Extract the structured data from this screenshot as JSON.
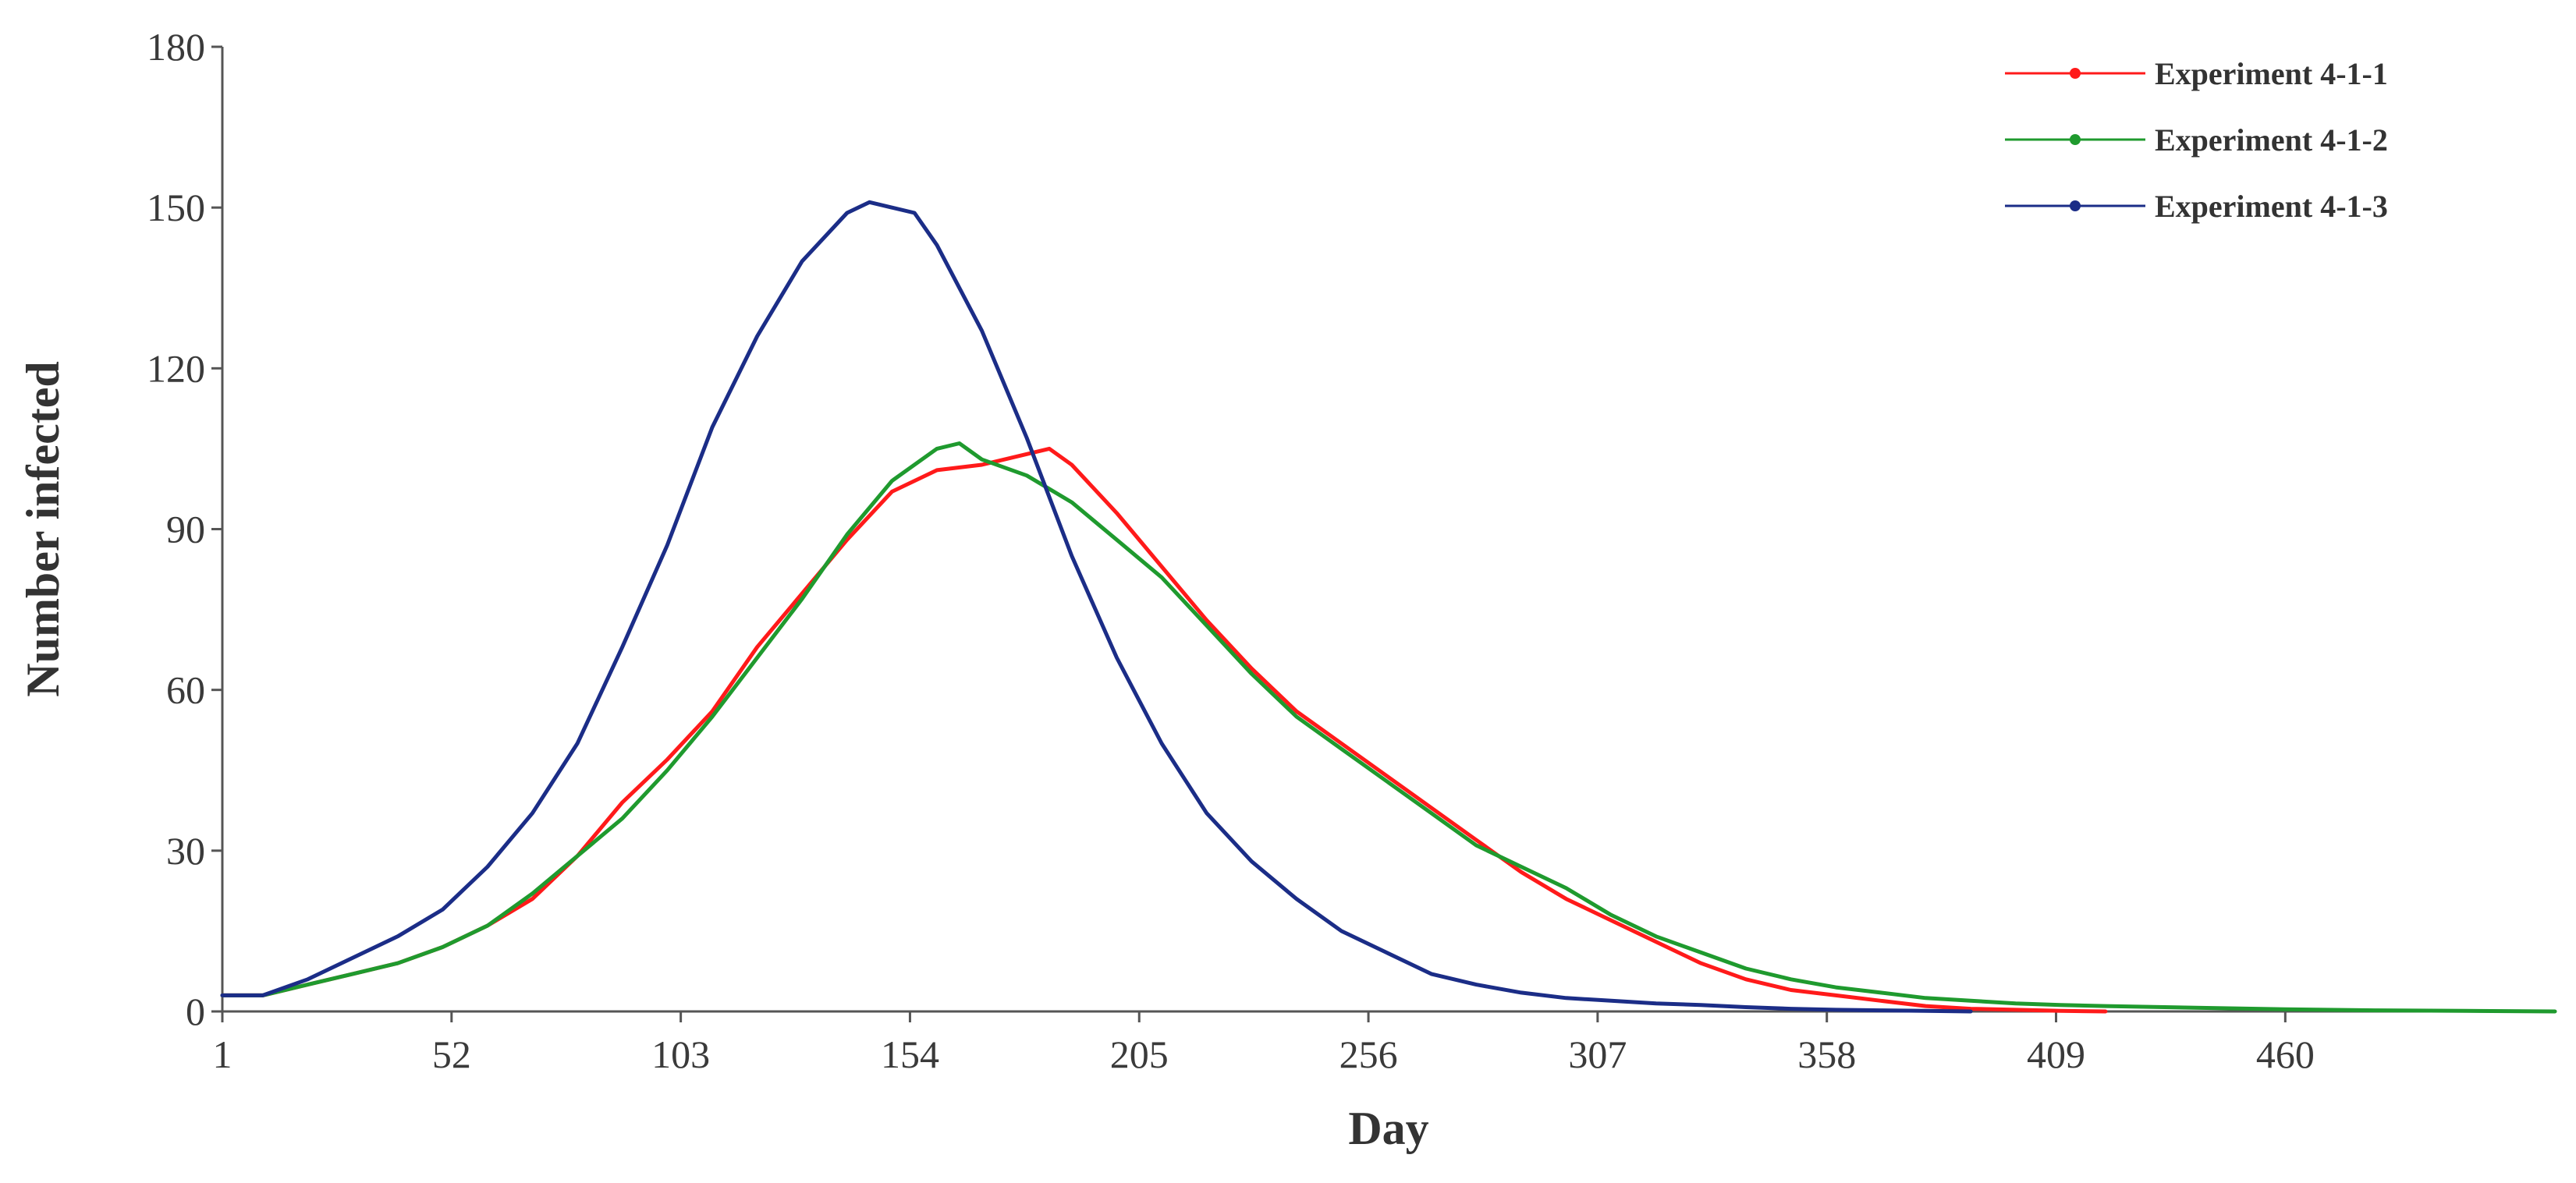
{
  "chart_data": {
    "type": "line",
    "title": "",
    "xlabel": "Day",
    "ylabel": "Number infected",
    "xlim": [
      1,
      520
    ],
    "ylim": [
      0,
      180
    ],
    "x_ticks": [
      1,
      52,
      103,
      154,
      205,
      256,
      307,
      358,
      409,
      460
    ],
    "y_ticks": [
      0,
      30,
      60,
      90,
      120,
      150,
      180
    ],
    "grid": false,
    "legend_position": "top-right",
    "series": [
      {
        "name": "Experiment 4-1-1",
        "color": "#ff1a1a",
        "points": [
          [
            1,
            3
          ],
          [
            10,
            3
          ],
          [
            20,
            5
          ],
          [
            30,
            7
          ],
          [
            40,
            9
          ],
          [
            50,
            12
          ],
          [
            60,
            16
          ],
          [
            70,
            21
          ],
          [
            80,
            29
          ],
          [
            90,
            39
          ],
          [
            100,
            47
          ],
          [
            110,
            56
          ],
          [
            120,
            68
          ],
          [
            130,
            78
          ],
          [
            140,
            88
          ],
          [
            150,
            97
          ],
          [
            160,
            101
          ],
          [
            170,
            102
          ],
          [
            180,
            104
          ],
          [
            185,
            105
          ],
          [
            190,
            102
          ],
          [
            200,
            93
          ],
          [
            210,
            83
          ],
          [
            220,
            73
          ],
          [
            230,
            64
          ],
          [
            240,
            56
          ],
          [
            250,
            50
          ],
          [
            260,
            44
          ],
          [
            270,
            38
          ],
          [
            280,
            32
          ],
          [
            290,
            26
          ],
          [
            300,
            21
          ],
          [
            310,
            17
          ],
          [
            320,
            13
          ],
          [
            330,
            9
          ],
          [
            340,
            6
          ],
          [
            350,
            4
          ],
          [
            360,
            3
          ],
          [
            370,
            2
          ],
          [
            380,
            1
          ],
          [
            390,
            0.5
          ],
          [
            400,
            0.3
          ],
          [
            410,
            0.1
          ],
          [
            420,
            0
          ]
        ]
      },
      {
        "name": "Experiment 4-1-2",
        "color": "#1f9a2e",
        "points": [
          [
            1,
            3
          ],
          [
            10,
            3
          ],
          [
            20,
            5
          ],
          [
            30,
            7
          ],
          [
            40,
            9
          ],
          [
            50,
            12
          ],
          [
            60,
            16
          ],
          [
            70,
            22
          ],
          [
            80,
            29
          ],
          [
            90,
            36
          ],
          [
            100,
            45
          ],
          [
            110,
            55
          ],
          [
            120,
            66
          ],
          [
            130,
            77
          ],
          [
            140,
            89
          ],
          [
            150,
            99
          ],
          [
            160,
            105
          ],
          [
            165,
            106
          ],
          [
            170,
            103
          ],
          [
            180,
            100
          ],
          [
            190,
            95
          ],
          [
            200,
            88
          ],
          [
            210,
            81
          ],
          [
            220,
            72
          ],
          [
            230,
            63
          ],
          [
            240,
            55
          ],
          [
            250,
            49
          ],
          [
            260,
            43
          ],
          [
            270,
            37
          ],
          [
            280,
            31
          ],
          [
            290,
            27
          ],
          [
            300,
            23
          ],
          [
            310,
            18
          ],
          [
            320,
            14
          ],
          [
            330,
            11
          ],
          [
            340,
            8
          ],
          [
            350,
            6
          ],
          [
            360,
            4.5
          ],
          [
            370,
            3.5
          ],
          [
            380,
            2.5
          ],
          [
            390,
            2
          ],
          [
            400,
            1.5
          ],
          [
            410,
            1.2
          ],
          [
            420,
            1
          ],
          [
            440,
            0.7
          ],
          [
            460,
            0.4
          ],
          [
            480,
            0.2
          ],
          [
            500,
            0.1
          ],
          [
            520,
            0
          ]
        ]
      },
      {
        "name": "Experiment 4-1-3",
        "color": "#1b2d87",
        "points": [
          [
            1,
            3
          ],
          [
            10,
            3
          ],
          [
            20,
            6
          ],
          [
            30,
            10
          ],
          [
            40,
            14
          ],
          [
            50,
            19
          ],
          [
            60,
            27
          ],
          [
            70,
            37
          ],
          [
            80,
            50
          ],
          [
            90,
            68
          ],
          [
            100,
            87
          ],
          [
            110,
            109
          ],
          [
            120,
            126
          ],
          [
            130,
            140
          ],
          [
            140,
            149
          ],
          [
            145,
            151
          ],
          [
            150,
            150
          ],
          [
            155,
            149
          ],
          [
            160,
            143
          ],
          [
            170,
            127
          ],
          [
            180,
            107
          ],
          [
            190,
            85
          ],
          [
            200,
            66
          ],
          [
            210,
            50
          ],
          [
            220,
            37
          ],
          [
            230,
            28
          ],
          [
            240,
            21
          ],
          [
            250,
            15
          ],
          [
            260,
            11
          ],
          [
            270,
            7
          ],
          [
            280,
            5
          ],
          [
            290,
            3.5
          ],
          [
            300,
            2.5
          ],
          [
            310,
            2
          ],
          [
            320,
            1.5
          ],
          [
            330,
            1.2
          ],
          [
            340,
            0.8
          ],
          [
            350,
            0.5
          ],
          [
            360,
            0.3
          ],
          [
            370,
            0.2
          ],
          [
            380,
            0.1
          ],
          [
            390,
            0
          ]
        ]
      }
    ]
  }
}
